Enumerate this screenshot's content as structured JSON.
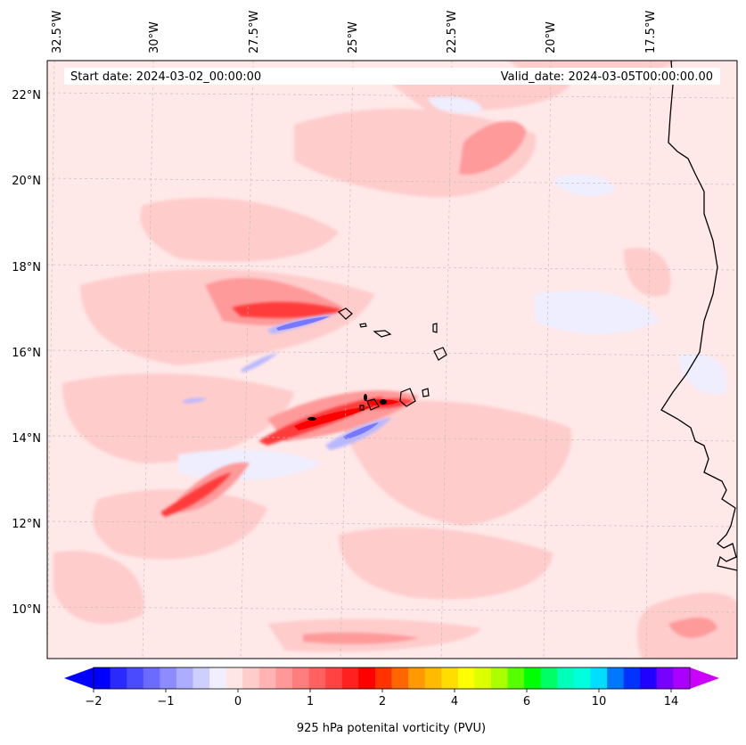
{
  "header": {
    "start_date": "Start date: 2024-03-02_00:00:00",
    "valid_date": "Valid_date: 2024-03-05T00:00:00.00"
  },
  "map": {
    "projection": "lambert-conformal",
    "lon_labels": [
      "32.5°W",
      "30°W",
      "27.5°W",
      "25°W",
      "22.5°W",
      "20°W",
      "17.5°W"
    ],
    "lat_labels": [
      "22°N",
      "20°N",
      "18°N",
      "16°N",
      "14°N",
      "12°N",
      "10°N"
    ],
    "gridlines": true,
    "colors": {
      "background_field": "#ffe8e8",
      "coastline": "#000000",
      "gridline": "#bbbbbb"
    }
  },
  "colorbar": {
    "title": "925 hPa potenital vorticity (PVU)",
    "tick_labels": [
      "−2",
      "−1",
      "0",
      "1",
      "2",
      "4",
      "6",
      "10",
      "14"
    ],
    "colors": [
      "#0000ff",
      "#2a2aff",
      "#4a4aff",
      "#6b6bff",
      "#8c8cff",
      "#adadff",
      "#cfcfff",
      "#efefff",
      "#ffe6e6",
      "#ffcccc",
      "#ffb3b3",
      "#ff9999",
      "#ff7d7d",
      "#ff6060",
      "#ff4242",
      "#ff2020",
      "#ff0000",
      "#ff3300",
      "#ff6600",
      "#ff9900",
      "#ffbb00",
      "#ffdd00",
      "#ffff00",
      "#ddff00",
      "#aaff00",
      "#55ff00",
      "#00ff00",
      "#00ff66",
      "#00ffbb",
      "#00ffdd",
      "#00ddff",
      "#0077ff",
      "#0033ff",
      "#2200ff",
      "#7700ff",
      "#aa00ff"
    ],
    "extend_min_color": "#0000ff",
    "extend_max_color": "#cc00ff"
  }
}
